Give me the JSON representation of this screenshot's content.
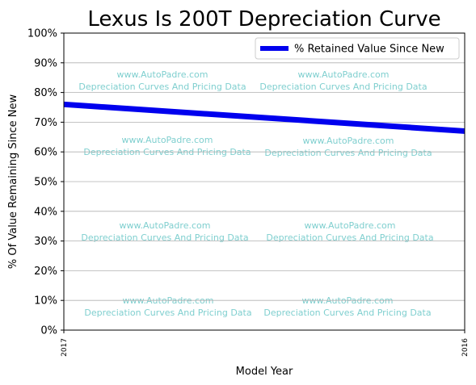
{
  "chart_data": {
    "type": "line",
    "title": "Lexus Is 200T Depreciation Curve",
    "xlabel": "Model Year",
    "ylabel": "% Of Value Remaining Since New",
    "x_tick_labels": [
      "2017",
      "2016"
    ],
    "ylim": [
      0,
      100
    ],
    "y_ticks": [
      0,
      10,
      20,
      30,
      40,
      50,
      60,
      70,
      80,
      90,
      100
    ],
    "y_tick_suffix": "%",
    "grid": "horizontal",
    "legend_position": "top-right",
    "series": [
      {
        "name": "% Retained Value Since New",
        "color": "#0000ee",
        "x": [
          "2017",
          "2016"
        ],
        "values": [
          76,
          67
        ]
      }
    ],
    "watermark": {
      "line1": "www.AutoPadre.com",
      "line2": "Depreciation Curves And Pricing Data"
    }
  }
}
